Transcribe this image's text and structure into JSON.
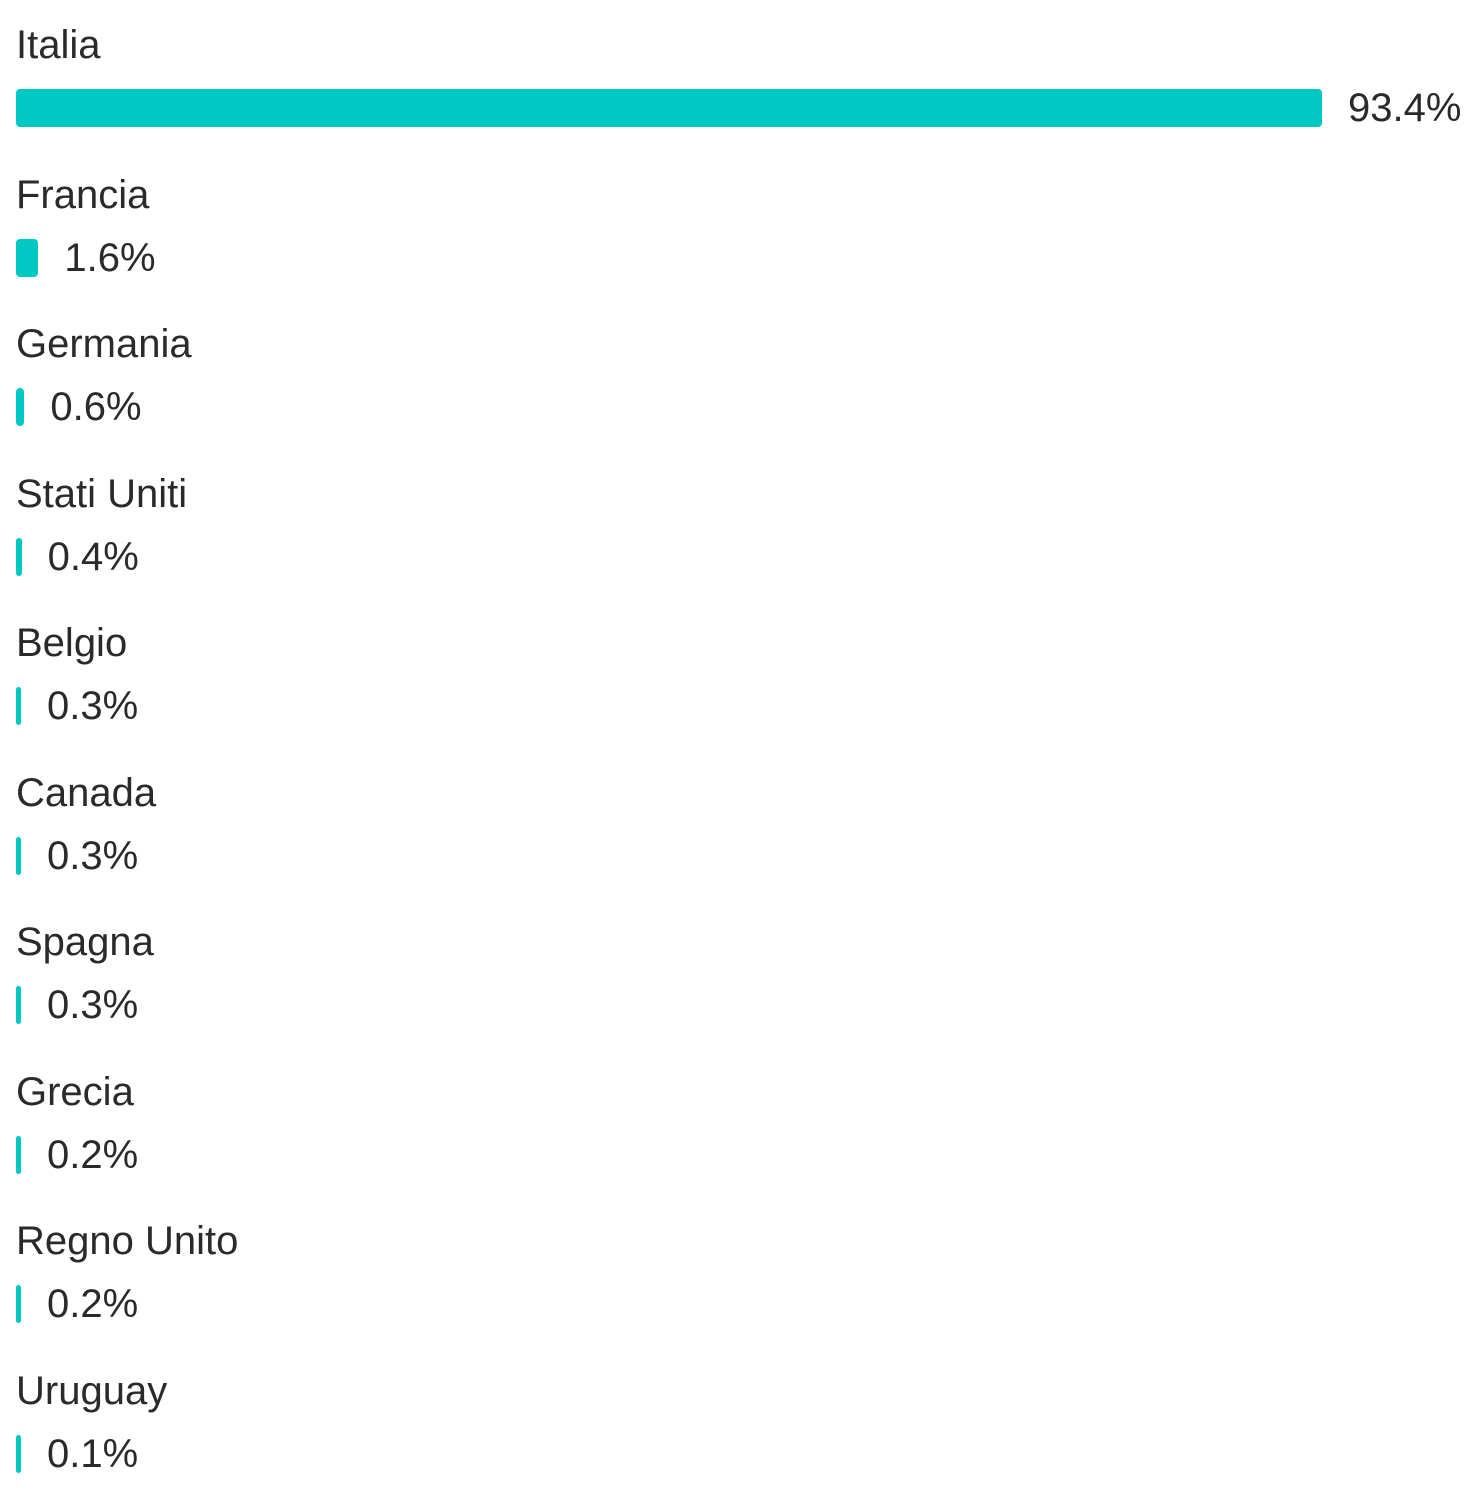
{
  "chart_data": {
    "type": "bar",
    "orientation": "horizontal",
    "title": "",
    "xlabel": "",
    "ylabel": "",
    "bar_color": "#00c9c3",
    "max_value": 93.4,
    "categories": [
      "Italia",
      "Francia",
      "Germania",
      "Stati Uniti",
      "Belgio",
      "Canada",
      "Spagna",
      "Grecia",
      "Regno Unito",
      "Uruguay"
    ],
    "values": [
      93.4,
      1.6,
      0.6,
      0.4,
      0.3,
      0.3,
      0.3,
      0.2,
      0.2,
      0.1
    ],
    "value_labels": [
      "93.4%",
      "1.6%",
      "0.6%",
      "0.4%",
      "0.3%",
      "0.3%",
      "0.3%",
      "0.2%",
      "0.2%",
      "0.1%"
    ]
  }
}
